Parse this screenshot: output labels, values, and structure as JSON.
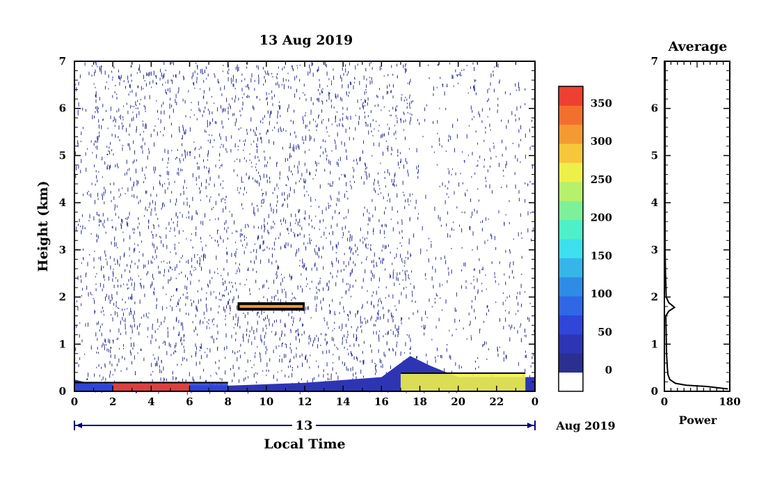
{
  "title": "13 Aug 2019",
  "main_plot": {
    "ylabel": "Height (km)",
    "xlabel": "Local Time",
    "x_ticks": [
      "0",
      "2",
      "4",
      "6",
      "8",
      "10",
      "12",
      "14",
      "16",
      "18",
      "20",
      "22",
      "0"
    ],
    "y_ticks": [
      "0",
      "1",
      "2",
      "3",
      "4",
      "5",
      "6",
      "7"
    ],
    "day_marker": "13",
    "month_label": "Aug 2019"
  },
  "colorbar": {
    "labels": [
      "0",
      "50",
      "100",
      "150",
      "200",
      "250",
      "300",
      "350"
    ],
    "colors": [
      "#ffffff",
      "#2b2f8f",
      "#2e35b5",
      "#2f46d9",
      "#2f67e6",
      "#2f8ce6",
      "#36b6e8",
      "#3de0ee",
      "#4ef0c8",
      "#7ef09a",
      "#b7f06a",
      "#eef04a",
      "#f6c73a",
      "#f59a32",
      "#f2702e",
      "#ee4030"
    ]
  },
  "average_panel": {
    "title": "Average",
    "xlabel": "Power",
    "x_ticks": [
      "0",
      "180"
    ],
    "y_ticks": [
      "0",
      "1",
      "2",
      "3",
      "4",
      "5",
      "6",
      "7"
    ]
  },
  "chart_data": [
    {
      "type": "heatmap",
      "title": "13 Aug 2019",
      "xlabel": "Local Time",
      "ylabel": "Height (km)",
      "xlim": [
        0,
        24
      ],
      "ylim": [
        0,
        7
      ],
      "colorbar_range": [
        0,
        375
      ],
      "features": [
        {
          "time": [
            0.0,
            8.0
          ],
          "height_top": 0.2,
          "value": 50
        },
        {
          "time": [
            2.0,
            6.0
          ],
          "height_top": 0.2,
          "value": 350
        },
        {
          "time": [
            8.5,
            12.0
          ],
          "height_center": 1.8,
          "value": 300
        },
        {
          "time": [
            17.0,
            23.5
          ],
          "height_top": 0.4,
          "value": 250
        }
      ]
    },
    {
      "type": "line",
      "title": "Average",
      "xlabel": "Power",
      "xlim": [
        0,
        180
      ],
      "ylim": [
        0,
        7
      ],
      "x": [
        175,
        120,
        60,
        30,
        15,
        10,
        8,
        6,
        5,
        4,
        12,
        28,
        12,
        5,
        3,
        2,
        2,
        2
      ],
      "y": [
        0.05,
        0.1,
        0.13,
        0.17,
        0.25,
        0.35,
        0.5,
        0.8,
        1.2,
        1.6,
        1.7,
        1.78,
        1.88,
        2.0,
        2.5,
        3.0,
        5.0,
        7.0
      ]
    }
  ]
}
